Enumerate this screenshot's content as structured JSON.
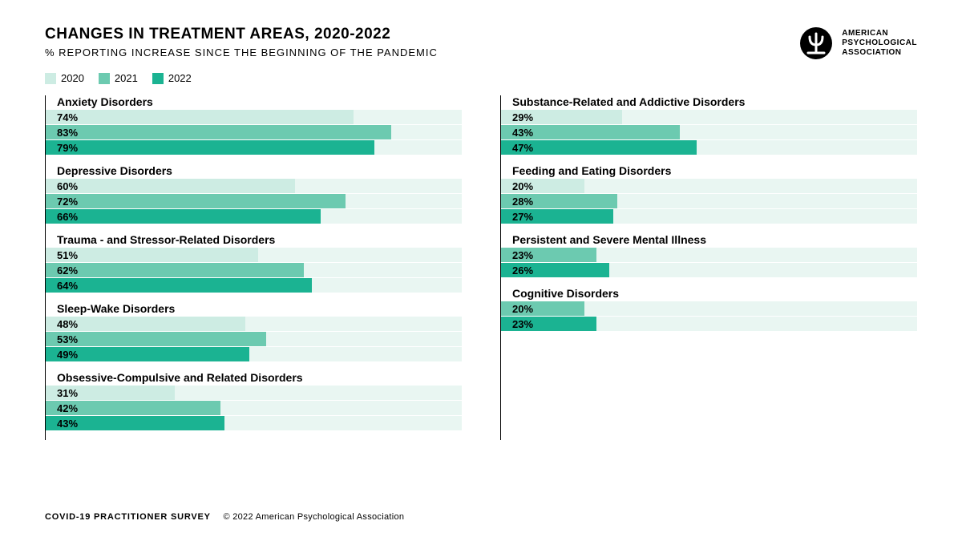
{
  "title": "CHANGES IN TREATMENT AREAS, 2020-2022",
  "subtitle": "% REPORTING INCREASE SINCE THE BEGINNING OF THE PANDEMIC",
  "logo_text": [
    "AMERICAN",
    "PSYCHOLOGICAL",
    "ASSOCIATION"
  ],
  "legend": [
    {
      "label": "2020",
      "color": "#cdece3"
    },
    {
      "label": "2021",
      "color": "#6ccab0"
    },
    {
      "label": "2022",
      "color": "#1bb392"
    }
  ],
  "track_color": "#e9f6f2",
  "axis_color": "#000000",
  "xmax": 100,
  "left_column": [
    {
      "label": "Anxiety Disorders",
      "bars": [
        74,
        83,
        79
      ]
    },
    {
      "label": "Depressive Disorders",
      "bars": [
        60,
        72,
        66
      ]
    },
    {
      "label": "Trauma - and Stressor-Related Disorders",
      "bars": [
        51,
        62,
        64
      ]
    },
    {
      "label": "Sleep-Wake Disorders",
      "bars": [
        48,
        53,
        49
      ]
    },
    {
      "label": "Obsessive-Compulsive and Related Disorders",
      "bars": [
        31,
        42,
        43
      ]
    }
  ],
  "right_column": [
    {
      "label": "Substance-Related and Addictive Disorders",
      "bars": [
        29,
        43,
        47
      ]
    },
    {
      "label": "Feeding and Eating Disorders",
      "bars": [
        20,
        28,
        27
      ]
    },
    {
      "label": "Persistent and Severe Mental Illness",
      "bars": [
        null,
        23,
        26
      ]
    },
    {
      "label": "Cognitive Disorders",
      "bars": [
        null,
        20,
        23
      ]
    }
  ],
  "footer_survey": "COVID-19 PRACTITIONER SURVEY",
  "footer_copy": "© 2022 American Psychological Association"
}
